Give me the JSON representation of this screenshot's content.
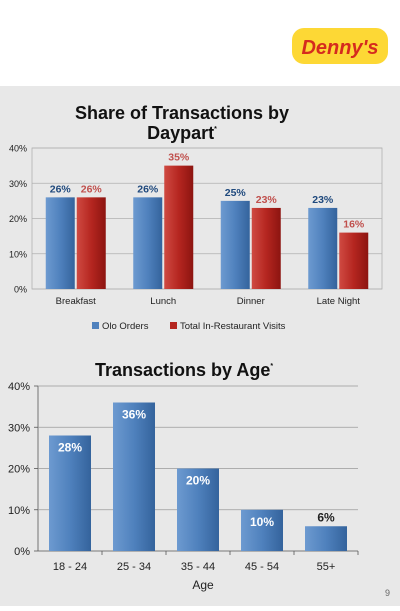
{
  "brand": {
    "name": "Denny's",
    "red": "#d52b1e",
    "yellow": "#fdd835"
  },
  "page_number": "9",
  "colors": {
    "blue": "#4f81bd",
    "red": "#c0504d",
    "blue_label": "#1f497d",
    "red_label": "#c0504d",
    "panel_bg": "#e8e8e8"
  },
  "chart_data": [
    {
      "type": "bar",
      "title": "Share of Transactions by Daypart",
      "title_marker": "*",
      "categories": [
        "Breakfast",
        "Lunch",
        "Dinner",
        "Late Night"
      ],
      "series": [
        {
          "name": "Olo Orders",
          "values": [
            26,
            26,
            25,
            23
          ],
          "labels": [
            "26%",
            "26%",
            "25%",
            "23%"
          ]
        },
        {
          "name": "Total In-Restaurant Visits",
          "values": [
            26,
            35,
            23,
            16
          ],
          "labels": [
            "26%",
            "35%",
            "23%",
            "16%"
          ]
        }
      ],
      "yticks": [
        "0%",
        "10%",
        "20%",
        "30%",
        "40%"
      ],
      "ylim": [
        0,
        40
      ],
      "legend": "bottom",
      "grid": true
    },
    {
      "type": "bar",
      "title": "Transactions by Age",
      "title_marker": "*",
      "categories": [
        "18 - 24",
        "25 - 34",
        "35 - 44",
        "45 - 54",
        "55+"
      ],
      "values": [
        28,
        36,
        20,
        10,
        6
      ],
      "labels": [
        "28%",
        "36%",
        "20%",
        "10%",
        "6%"
      ],
      "xlabel": "Age",
      "yticks": [
        "0%",
        "10%",
        "20%",
        "30%",
        "40%"
      ],
      "ylim": [
        0,
        40
      ],
      "grid": true
    }
  ]
}
